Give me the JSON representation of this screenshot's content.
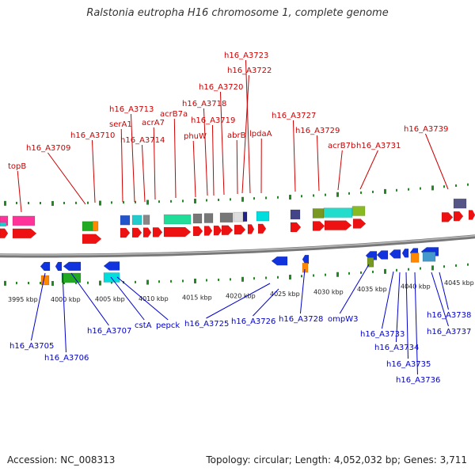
{
  "title": "Ralstonia eutropha H16 chromosome 1, complete genome",
  "footer": {
    "accession": "Accession: NC_008313",
    "summary": "Topology: circular; Length: 4,052,032 bp; Genes: 3,711"
  },
  "colors": {
    "forward": "#ee1111",
    "reverse": "#1133dd",
    "forward_label": "#cc0000",
    "reverse_label": "#0000cc",
    "tick": "#228822"
  },
  "scale": {
    "labels": [
      "3995 kbp",
      "4000 kbp",
      "4005 kbp",
      "4010 kbp",
      "4015 kbp",
      "4020 kbp",
      "4025 kbp",
      "4030 kbp",
      "4035 kbp",
      "4040 kbp",
      "4045 kbp"
    ]
  },
  "top_labels": [
    "topB",
    "h16_A3709",
    "h16_A3710",
    "serA1",
    "h16_A3713",
    "h16_A3714",
    "acrA7",
    "acrB7a",
    "phuW",
    "h16_A3718",
    "h16_A3719",
    "h16_A3720",
    "abrB",
    "h16_A3723",
    "h16_A3722",
    "lpdaA",
    "h16_A3727",
    "h16_A3729",
    "acrB7b",
    "h16_A3731",
    "h16_A3739"
  ],
  "bottom_labels": [
    "h16_A3705",
    "h16_A3706",
    "h16_A3707",
    "cstA",
    "pepck",
    "h16_A3725",
    "h16_A3726",
    "h16_A3728",
    "ompW3",
    "h16_A3733",
    "h16_A3734",
    "h16_A3735",
    "h16_A3736",
    "h16_A3737",
    "h16_A3738"
  ]
}
